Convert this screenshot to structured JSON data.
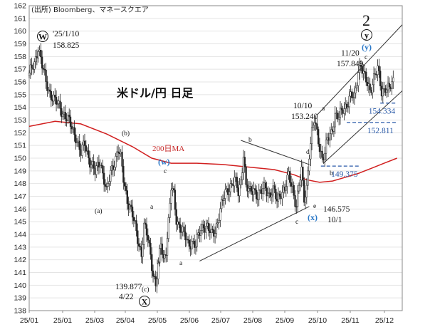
{
  "chart_data": {
    "type": "candlestick",
    "title": "米ドル/円 日足",
    "source": "(出所) Bloomberg、マネースクエア",
    "ylim": [
      138,
      162
    ],
    "yticks": [
      138,
      139,
      140,
      141,
      142,
      143,
      144,
      145,
      146,
      147,
      148,
      149,
      150,
      151,
      152,
      153,
      154,
      155,
      156,
      157,
      158,
      159,
      160,
      161,
      162
    ],
    "xtick_labels": [
      "25/01",
      "25/01",
      "25/03",
      "25/04",
      "25/05",
      "25/06",
      "25/07",
      "25/08",
      "25/09",
      "25/10",
      "25/11",
      "25/12"
    ],
    "price_path": [
      [
        0,
        156.5
      ],
      [
        4,
        157.5
      ],
      [
        7,
        158.8
      ],
      [
        10,
        157.2
      ],
      [
        13,
        156.0
      ],
      [
        16,
        155.2
      ],
      [
        20,
        154.4
      ],
      [
        24,
        154.0
      ],
      [
        28,
        153.3
      ],
      [
        32,
        152.6
      ],
      [
        36,
        151.8
      ],
      [
        40,
        150.3
      ],
      [
        43,
        151.2
      ],
      [
        47,
        149.8
      ],
      [
        51,
        148.8
      ],
      [
        55,
        149.9
      ],
      [
        58,
        148.3
      ],
      [
        60,
        147.2
      ],
      [
        63,
        148.9
      ],
      [
        66,
        149.8
      ],
      [
        69,
        150.6
      ],
      [
        71,
        149.9
      ],
      [
        73,
        148.4
      ],
      [
        76,
        146.8
      ],
      [
        79,
        145.8
      ],
      [
        82,
        144.6
      ],
      [
        85,
        143.3
      ],
      [
        87,
        142.5
      ],
      [
        89,
        144.6
      ],
      [
        92,
        143.6
      ],
      [
        94,
        142.4
      ],
      [
        96,
        141.0
      ],
      [
        98,
        140.0
      ],
      [
        100,
        141.4
      ],
      [
        102,
        143.3
      ],
      [
        104,
        142.0
      ],
      [
        106,
        142.9
      ],
      [
        108,
        145.0
      ],
      [
        110,
        147.6
      ],
      [
        112,
        147.0
      ],
      [
        114,
        145.2
      ],
      [
        117,
        144.6
      ],
      [
        120,
        143.9
      ],
      [
        123,
        143.2
      ],
      [
        126,
        143.5
      ],
      [
        129,
        143.1
      ],
      [
        132,
        144.1
      ],
      [
        135,
        144.8
      ],
      [
        138,
        144.6
      ],
      [
        141,
        143.9
      ],
      [
        144,
        144.3
      ],
      [
        147,
        145.6
      ],
      [
        150,
        146.6
      ],
      [
        153,
        147.4
      ],
      [
        156,
        147.9
      ],
      [
        159,
        148.3
      ],
      [
        162,
        147.2
      ],
      [
        164,
        148.2
      ],
      [
        166,
        150.5
      ],
      [
        168,
        147.8
      ],
      [
        171,
        147.2
      ],
      [
        174,
        147.6
      ],
      [
        177,
        147.1
      ],
      [
        180,
        147.3
      ],
      [
        183,
        147.7
      ],
      [
        186,
        147.2
      ],
      [
        189,
        147.4
      ],
      [
        192,
        146.6
      ],
      [
        195,
        147.4
      ],
      [
        198,
        147.6
      ],
      [
        201,
        148.5
      ],
      [
        204,
        147.7
      ],
      [
        207,
        146.3
      ],
      [
        209,
        147.8
      ],
      [
        211,
        148.9
      ],
      [
        213,
        146.8
      ],
      [
        215,
        147.8
      ],
      [
        217,
        150.4
      ],
      [
        219,
        151.9
      ],
      [
        221,
        152.9
      ],
      [
        223,
        152.0
      ],
      [
        225,
        151.0
      ],
      [
        227,
        150.0
      ],
      [
        229,
        150.3
      ],
      [
        231,
        151.4
      ],
      [
        234,
        152.1
      ],
      [
        237,
        153.4
      ],
      [
        240,
        153.1
      ],
      [
        243,
        153.9
      ],
      [
        246,
        154.3
      ],
      [
        249,
        154.8
      ],
      [
        252,
        154.7
      ],
      [
        255,
        157.0
      ],
      [
        257,
        157.4
      ],
      [
        259,
        156.5
      ],
      [
        261,
        156.0
      ],
      [
        264,
        155.4
      ],
      [
        267,
        156.4
      ],
      [
        270,
        156.9
      ],
      [
        273,
        155.2
      ],
      [
        276,
        155.7
      ],
      [
        279,
        155.4
      ],
      [
        282,
        155.9
      ]
    ],
    "ma200_path": [
      [
        0,
        152.5
      ],
      [
        20,
        152.9
      ],
      [
        40,
        152.7
      ],
      [
        60,
        151.9
      ],
      [
        80,
        150.9
      ],
      [
        95,
        150.0
      ],
      [
        110,
        149.6
      ],
      [
        130,
        149.6
      ],
      [
        150,
        149.5
      ],
      [
        170,
        149.3
      ],
      [
        190,
        149.1
      ],
      [
        205,
        148.7
      ],
      [
        215,
        148.3
      ],
      [
        225,
        148.1
      ],
      [
        235,
        148.2
      ],
      [
        245,
        148.5
      ],
      [
        255,
        148.8
      ],
      [
        265,
        149.2
      ],
      [
        275,
        149.6
      ],
      [
        285,
        150.0
      ]
    ],
    "ma_label": "200日MA",
    "trendlines": [
      {
        "from": [
          132,
          141.9
        ],
        "to": [
          217,
          146.2
        ]
      },
      {
        "from": [
          164,
          151.4
        ],
        "to": [
          217,
          149.5
        ]
      },
      {
        "from": [
          223,
          153.4
        ],
        "to": [
          289,
          160.5
        ]
      },
      {
        "from": [
          228,
          149.6
        ],
        "to": [
          289,
          155.3
        ]
      }
    ],
    "levels": [
      {
        "value": "154.334",
        "y": 154.334,
        "x_from": 272,
        "x_to": 285
      },
      {
        "value": "152.811",
        "y": 152.811,
        "x_from": 246,
        "x_to": 284
      },
      {
        "value": "149.375",
        "y": 149.375,
        "x_from": 226,
        "x_to": 256
      }
    ],
    "annotations": {
      "w_label": "W",
      "w_date": "'25/1/10",
      "w_price": "158.825",
      "x_label": "X",
      "x_price": "139.877",
      "x_date": "4/22",
      "x_sub": "(c)",
      "y_label": "y",
      "y_date": "11/20",
      "y_price": "157.849",
      "y_sub": "c",
      "wave_2": "2",
      "w_small": "(w)",
      "w_small_sub": "c",
      "x_small": "(x)",
      "x_small_date": "10/1",
      "x_small_price": "146.575",
      "oct_date": "10/10",
      "oct_price": "153.240",
      "a": "(a)",
      "b": "(b)",
      "lbl_a": "a",
      "lbl_b": "b",
      "lbl_c": "c",
      "lbl_d": "d",
      "lbl_e": "e"
    }
  }
}
